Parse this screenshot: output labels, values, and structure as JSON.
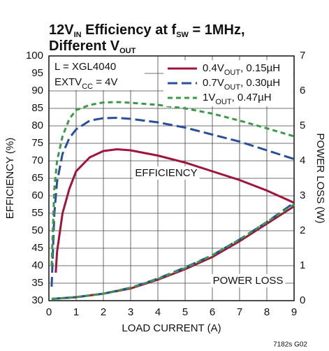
{
  "chart_data": {
    "type": "line",
    "title": [
      [
        "12V",
        {
          "sub": "IN"
        },
        " Efficiency at f",
        {
          "sub": "SW"
        },
        " = 1MHz,"
      ],
      [
        "Different V",
        {
          "sub": "OUT"
        }
      ]
    ],
    "ylabel": "EFFICIENCY (%)",
    "y2label": "POWER LOSS (W)",
    "xlabel": "LOAD CURRENT (A)",
    "xlim": [
      0,
      9
    ],
    "xticks": [
      0,
      1,
      2,
      3,
      4,
      5,
      6,
      7,
      8,
      9
    ],
    "ylim": [
      30,
      100
    ],
    "yticks": [
      30,
      35,
      40,
      45,
      50,
      55,
      60,
      65,
      70,
      75,
      80,
      85,
      90,
      95,
      100
    ],
    "y2lim": [
      0,
      7
    ],
    "y2ticks": [
      0,
      1,
      2,
      3,
      4,
      5,
      6,
      7
    ],
    "grid": true,
    "legend": "upper right",
    "notes": [
      [
        "L = XGL4040"
      ],
      [
        "EXTV",
        {
          "sub": "CC"
        },
        " = 4V"
      ]
    ],
    "annotations": [
      "EFFICIENCY",
      "POWER LOSS"
    ],
    "footer": "7182s G02",
    "series": [
      {
        "name": [
          "0.4V",
          {
            "sub": "OUT"
          },
          ", 0.15µH"
        ],
        "color": "#a0143c",
        "dash": "none",
        "x": [
          0.25,
          0.3,
          0.5,
          0.75,
          1,
          1.5,
          2,
          2.5,
          3,
          4,
          5,
          6,
          7,
          8,
          9
        ],
        "values": [
          38,
          44,
          55,
          62,
          67,
          71,
          72.8,
          73.3,
          73,
          71.5,
          69.5,
          67,
          64.5,
          61.5,
          58
        ]
      },
      {
        "name": [
          "0.7V",
          {
            "sub": "OUT"
          },
          ", 0.30µH"
        ],
        "color": "#2a4f9e",
        "dash": "14 6",
        "x": [
          0.1,
          0.2,
          0.3,
          0.5,
          0.75,
          1,
          1.5,
          2,
          2.5,
          3,
          4,
          5,
          6,
          7,
          8,
          9
        ],
        "values": [
          34,
          55,
          64,
          72,
          76.5,
          79,
          81.5,
          82.2,
          82.3,
          82,
          81,
          79.5,
          77.5,
          75.5,
          73,
          70.5
        ]
      },
      {
        "name": [
          "1V",
          {
            "sub": "OUT"
          },
          ", 0.47µH"
        ],
        "color": "#3a9a48",
        "dash": "7 5",
        "x": [
          0.1,
          0.2,
          0.3,
          0.5,
          0.75,
          1,
          1.5,
          2,
          2.5,
          3,
          4,
          5,
          6,
          7,
          8,
          9
        ],
        "values": [
          40,
          62,
          70,
          77,
          82,
          84.5,
          86,
          86.7,
          86.8,
          86.6,
          86,
          85,
          83.5,
          81.5,
          79.3,
          77
        ]
      },
      {
        "color": "#a0143c",
        "dash": "none",
        "axis": "y2",
        "x": [
          0.1,
          1,
          2,
          3,
          4,
          5,
          6,
          7,
          8,
          9
        ],
        "values": [
          0.05,
          0.1,
          0.2,
          0.35,
          0.6,
          0.9,
          1.25,
          1.7,
          2.2,
          2.7
        ]
      },
      {
        "color": "#2a4f9e",
        "dash": "14 6",
        "axis": "y2",
        "x": [
          0.1,
          1,
          2,
          3,
          4,
          5,
          6,
          7,
          8,
          9
        ],
        "values": [
          0.05,
          0.1,
          0.2,
          0.37,
          0.63,
          0.95,
          1.3,
          1.75,
          2.25,
          2.8
        ]
      },
      {
        "color": "#3a9a48",
        "dash": "7 5",
        "axis": "y2",
        "x": [
          0.1,
          1,
          2,
          3,
          4,
          5,
          6,
          7,
          8,
          9
        ],
        "values": [
          0.05,
          0.1,
          0.2,
          0.37,
          0.62,
          0.93,
          1.3,
          1.75,
          2.25,
          2.75
        ]
      }
    ]
  }
}
